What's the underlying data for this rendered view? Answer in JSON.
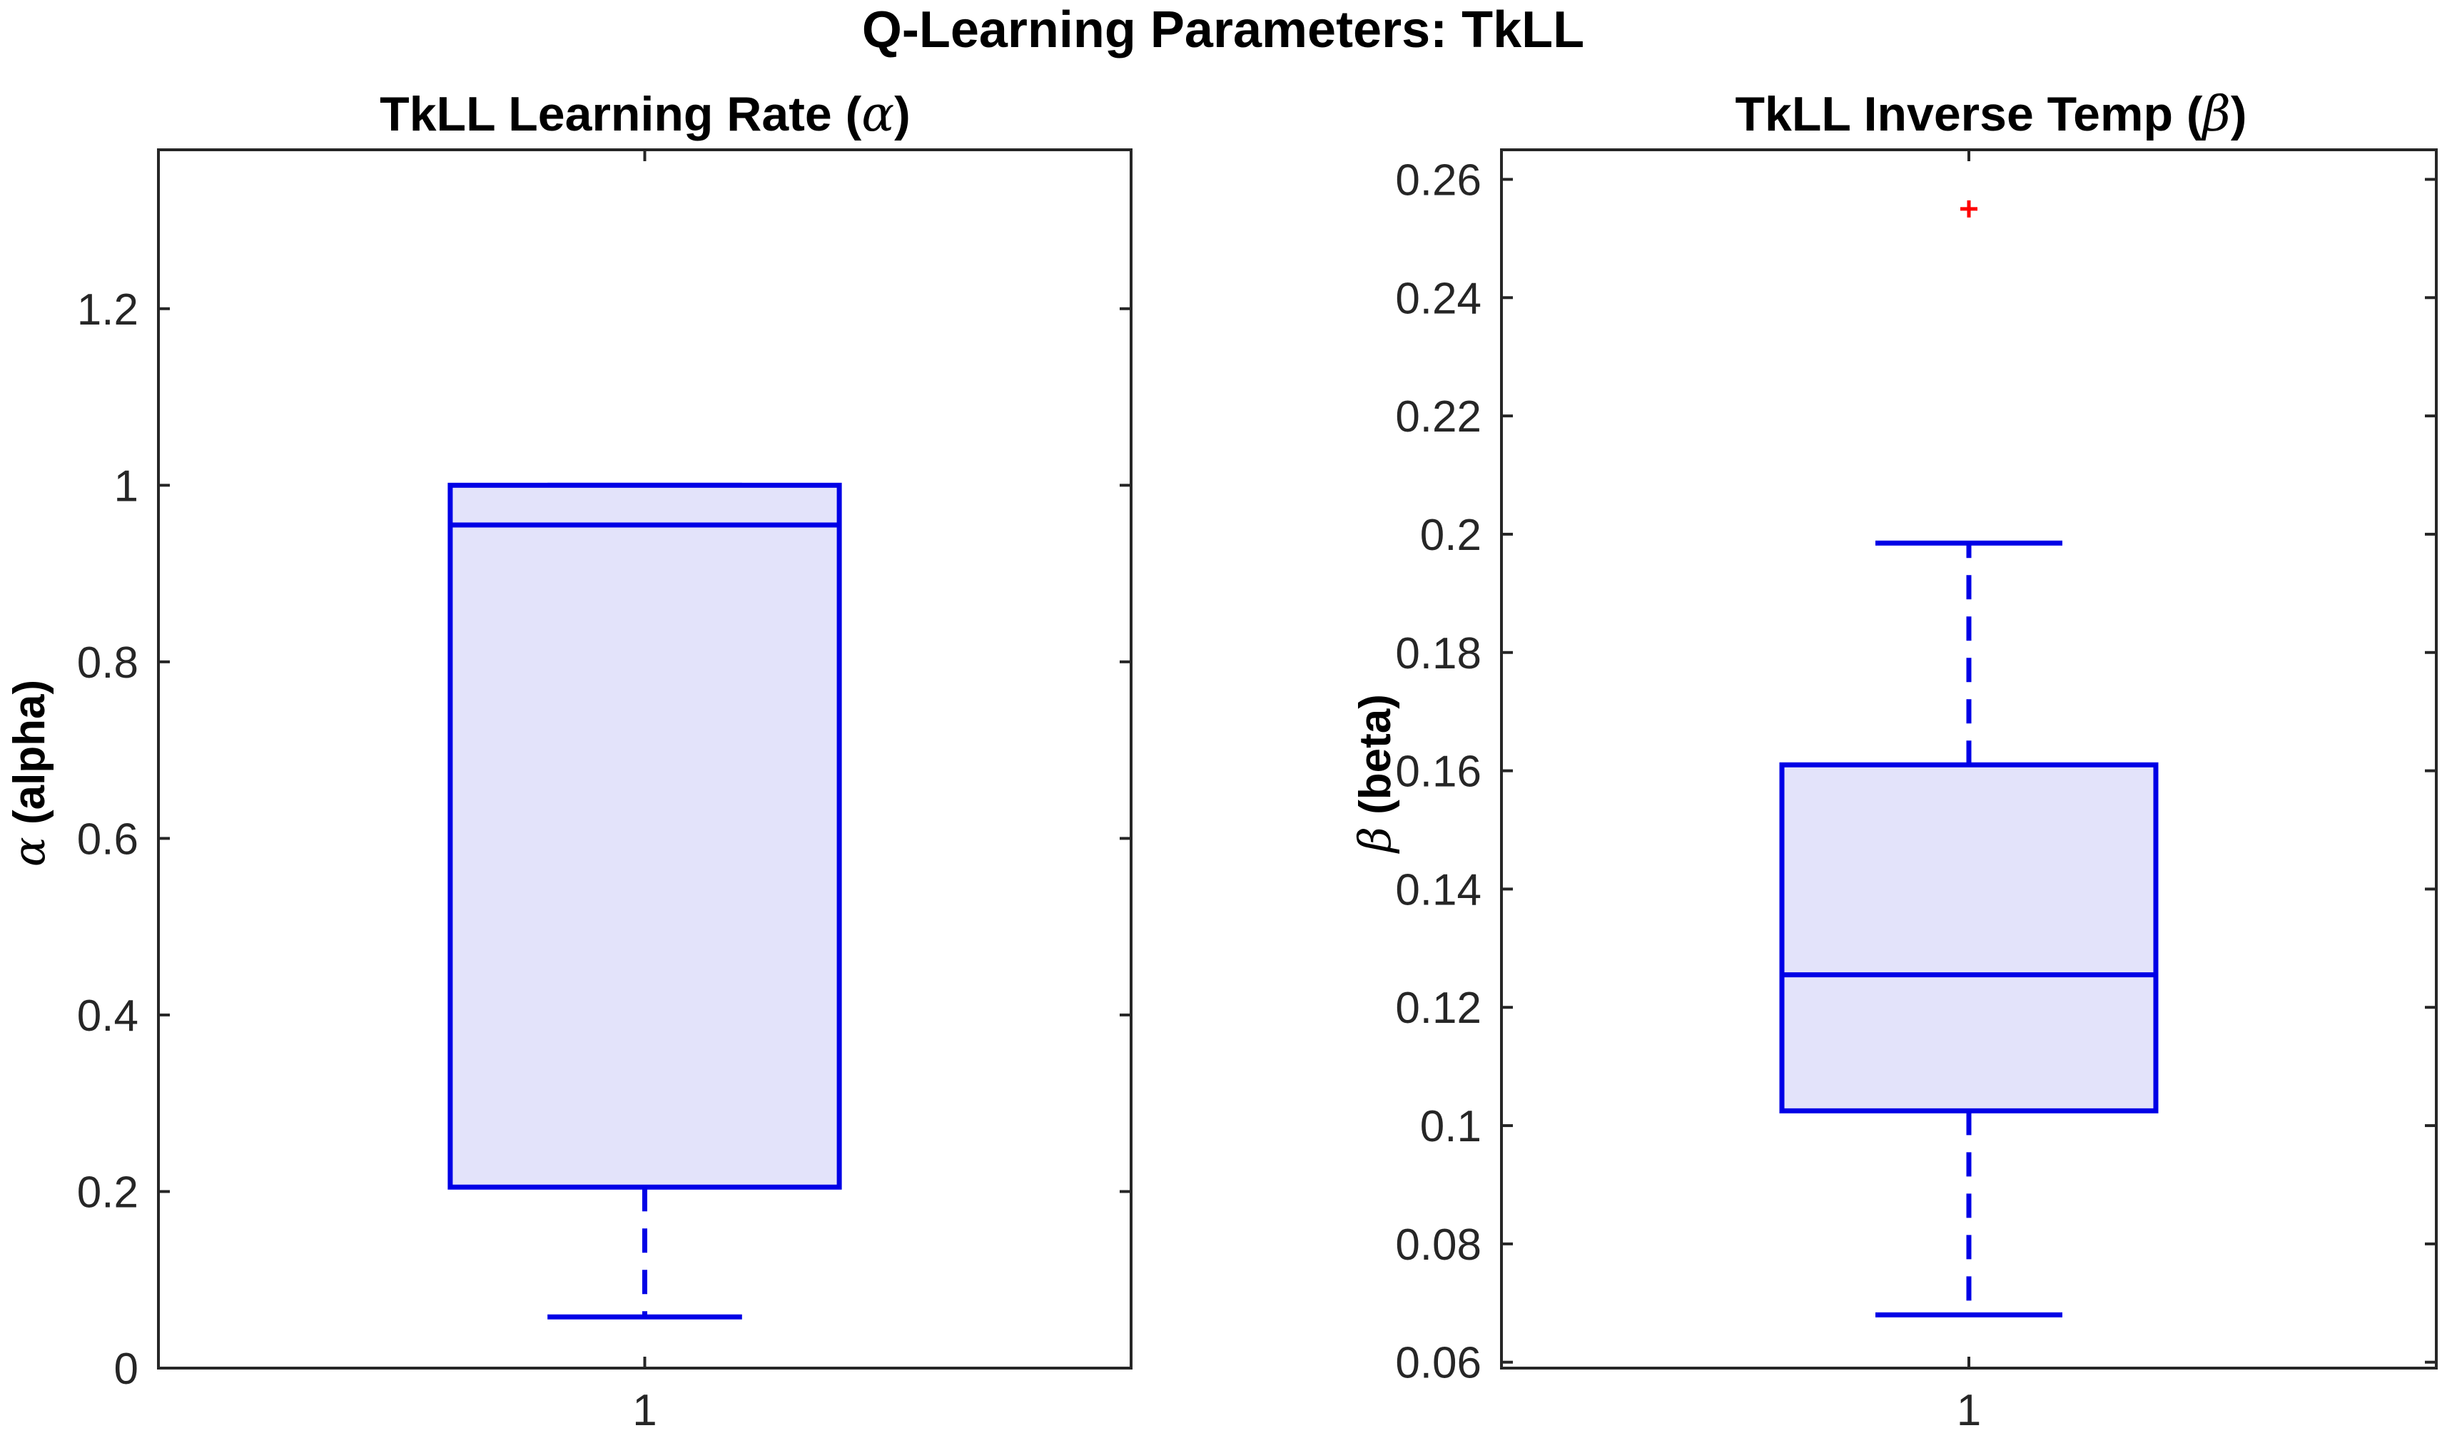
{
  "figure": {
    "title": "Q-Learning Parameters: TkLL"
  },
  "chart_data": [
    {
      "type": "box",
      "title_text": "TkLL Learning Rate (",
      "title_greek": "α",
      "title_close": ")",
      "ylabel_greek": "α",
      "ylabel_text": " (alpha)",
      "categories": [
        "1"
      ],
      "ylim": [
        0,
        1.38
      ],
      "yticks": [
        0,
        0.2,
        0.4,
        0.6,
        0.8,
        1,
        1.2
      ],
      "ytick_labels": [
        "0",
        "0.2",
        "0.4",
        "0.6",
        "0.8",
        "1",
        "1.2"
      ],
      "boxes": [
        {
          "category": "1",
          "whisker_low": 0.058,
          "q1": 0.205,
          "median": 0.955,
          "q3": 1.0,
          "whisker_high": 1.0,
          "outliers": []
        }
      ],
      "grid": false,
      "colors": {
        "box": "#0000e6",
        "fill": "#e3e3fa",
        "outlier": "#ff0000",
        "axis": "#262626"
      }
    },
    {
      "type": "box",
      "title_text": "TkLL Inverse Temp (",
      "title_greek": "β",
      "title_close": ")",
      "ylabel_greek": "β",
      "ylabel_text": " (beta)",
      "categories": [
        "1"
      ],
      "ylim": [
        0.059,
        0.265
      ],
      "yticks": [
        0.06,
        0.08,
        0.1,
        0.12,
        0.14,
        0.16,
        0.18,
        0.2,
        0.22,
        0.24,
        0.26
      ],
      "ytick_labels": [
        "0.06",
        "0.08",
        "0.1",
        "0.12",
        "0.14",
        "0.16",
        "0.18",
        "0.2",
        "0.22",
        "0.24",
        "0.26"
      ],
      "boxes": [
        {
          "category": "1",
          "whisker_low": 0.068,
          "q1": 0.1025,
          "median": 0.1255,
          "q3": 0.161,
          "whisker_high": 0.1985,
          "outliers": [
            0.255
          ]
        }
      ],
      "grid": false,
      "colors": {
        "box": "#0000e6",
        "fill": "#e3e3fa",
        "outlier": "#ff0000",
        "axis": "#262626"
      }
    }
  ]
}
